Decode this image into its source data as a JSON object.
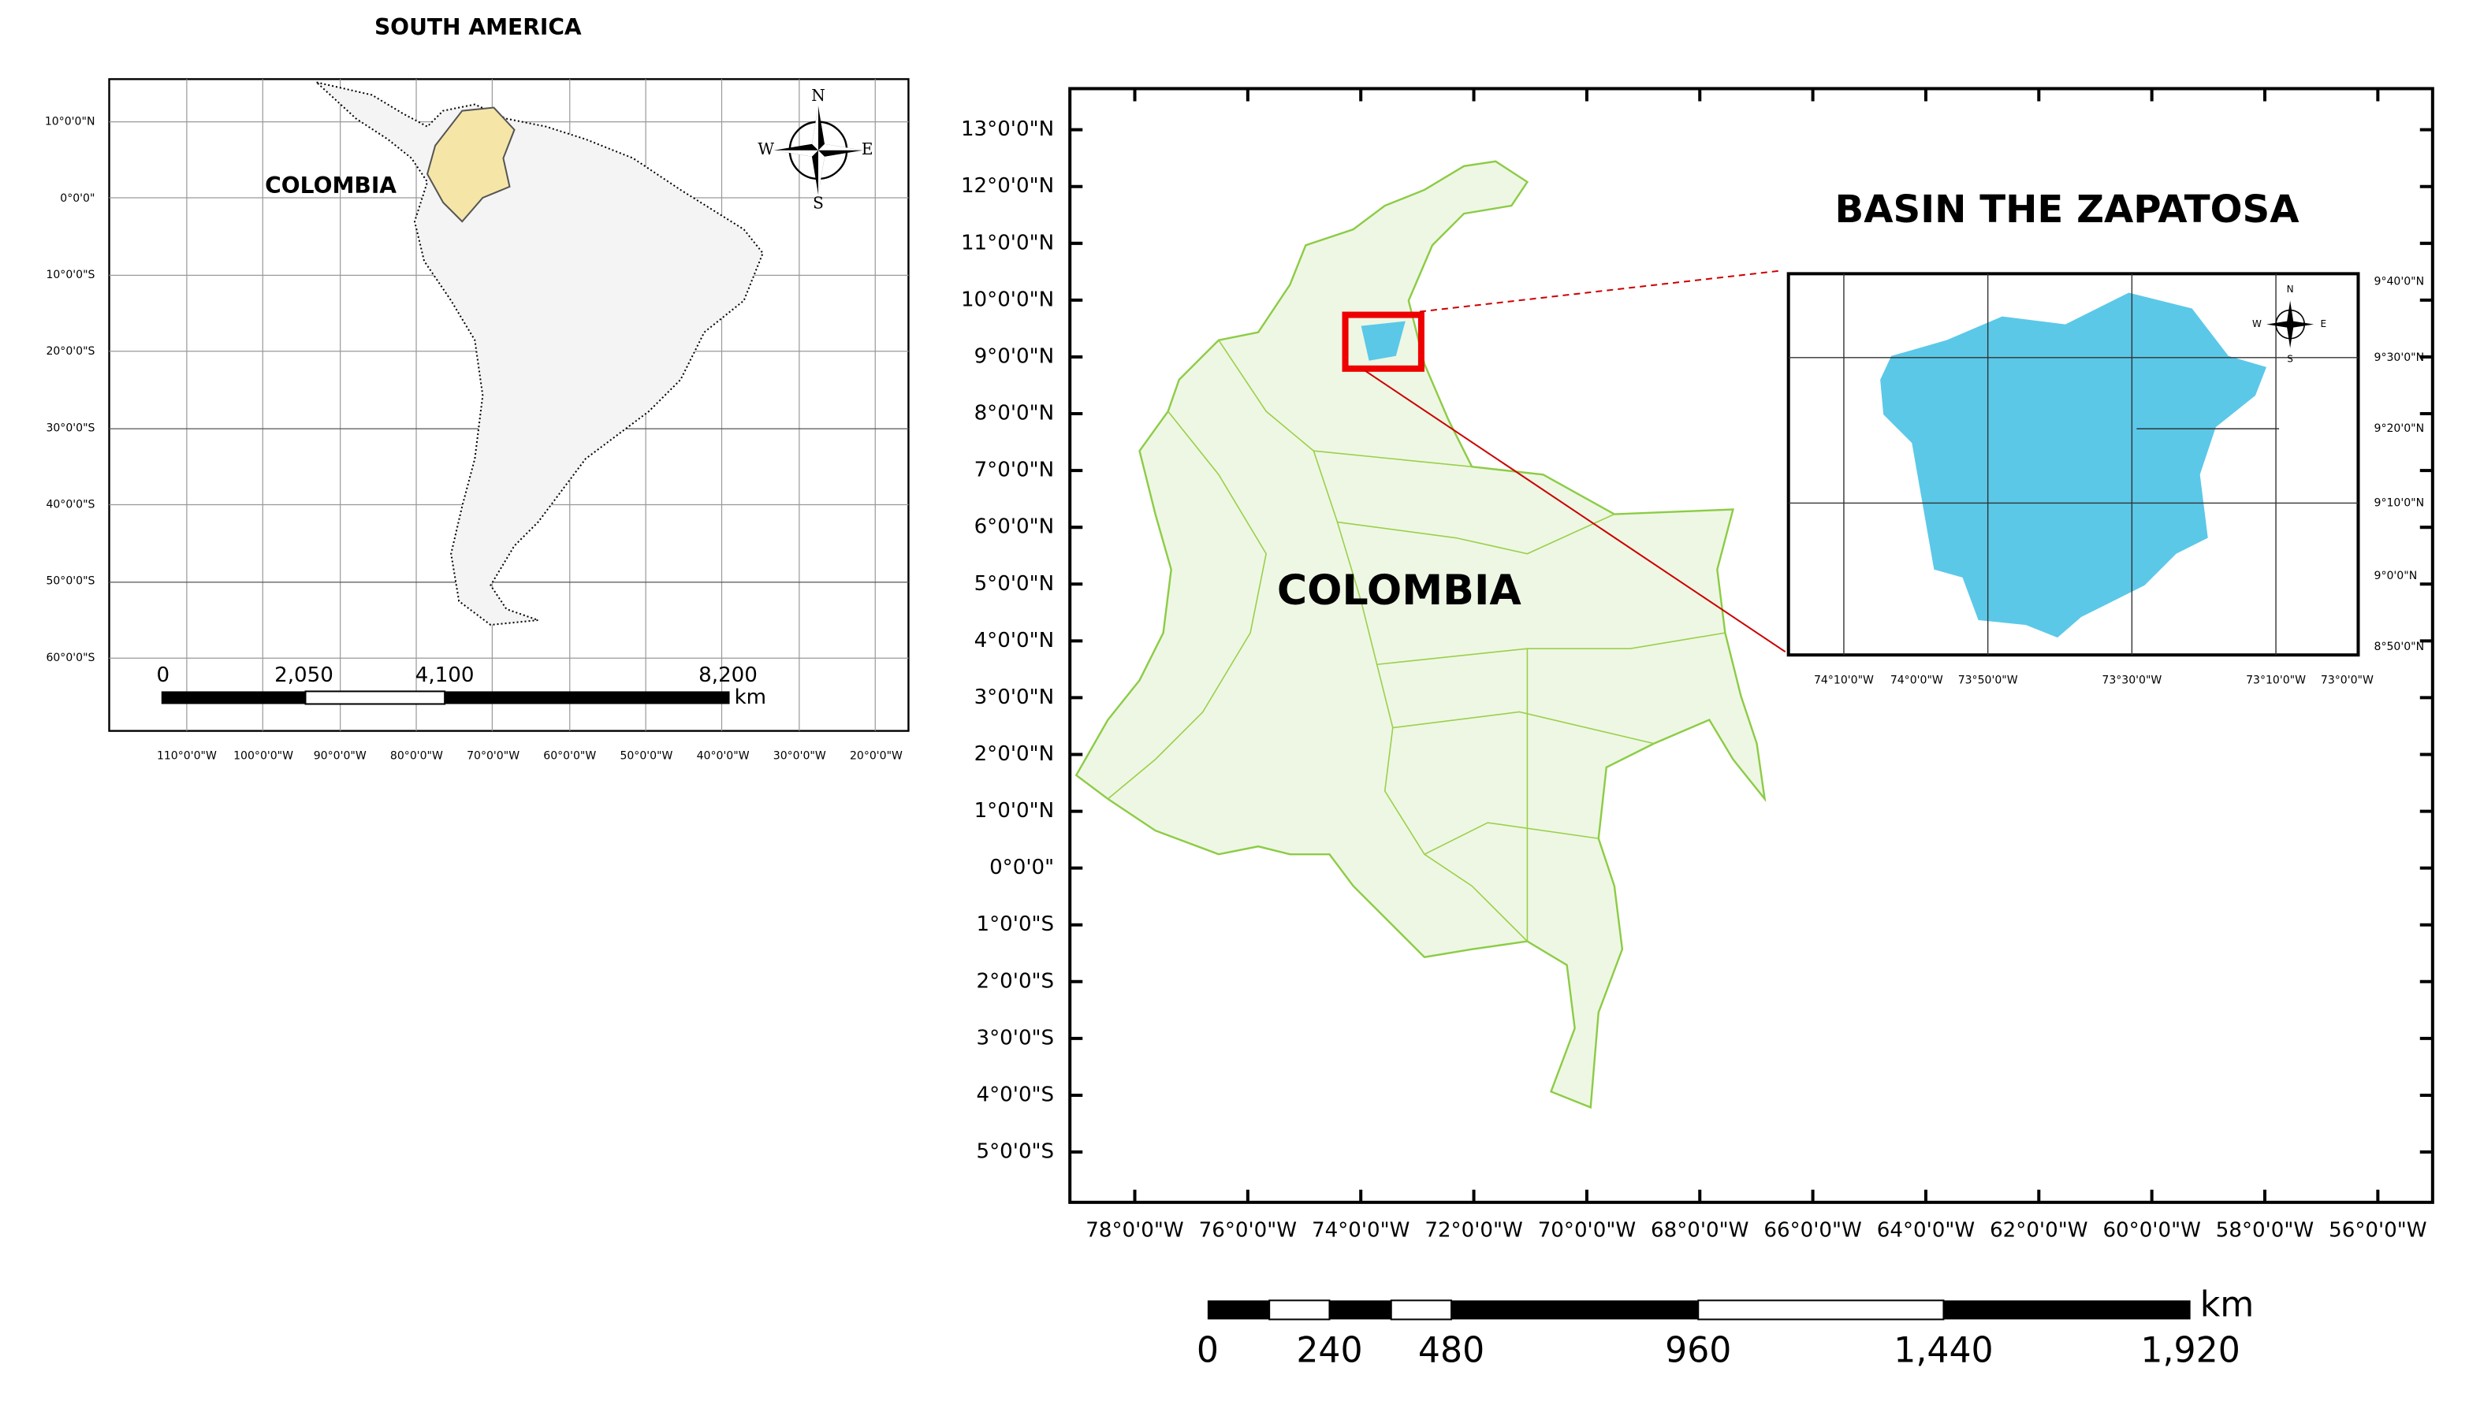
{
  "south_america": {
    "title": "SOUTH AMERICA",
    "country_label": "COLOMBIA",
    "lat_labels": [
      "10°0'0\"N",
      "0°0'0\"",
      "10°0'0\"S",
      "20°0'0\"S",
      "30°0'0\"S",
      "40°0'0\"S",
      "50°0'0\"S",
      "60°0'0\"S"
    ],
    "lon_labels": [
      "110°0'0\"W",
      "100°0'0\"W",
      "90°0'0\"W",
      "80°0'0\"W",
      "70°0'0\"W",
      "60°0'0\"W",
      "50°0'0\"W",
      "40°0'0\"W",
      "30°0'0\"W",
      "20°0'0\"W"
    ],
    "scale_labels": [
      "0",
      "2,050",
      "4,100",
      "8,200"
    ],
    "scale_unit": "km",
    "compass": [
      "N",
      "E",
      "S",
      "W"
    ]
  },
  "colombia": {
    "country_label": "COLOMBIA",
    "lat_labels": [
      "13°0'0\"N",
      "12°0'0\"N",
      "11°0'0\"N",
      "10°0'0\"N",
      "9°0'0\"N",
      "8°0'0\"N",
      "7°0'0\"N",
      "6°0'0\"N",
      "5°0'0\"N",
      "4°0'0\"N",
      "3°0'0\"N",
      "2°0'0\"N",
      "1°0'0\"N",
      "0°0'0\"",
      "1°0'0\"S",
      "2°0'0\"S",
      "3°0'0\"S",
      "4°0'0\"S",
      "5°0'0\"S"
    ],
    "lon_labels": [
      "78°0'0\"W",
      "76°0'0\"W",
      "74°0'0\"W",
      "72°0'0\"W",
      "70°0'0\"W",
      "68°0'0\"W",
      "66°0'0\"W",
      "64°0'0\"W",
      "62°0'0\"W",
      "60°0'0\"W",
      "58°0'0\"W",
      "56°0'0\"W"
    ],
    "scale_labels": [
      "0",
      "240",
      "480",
      "960",
      "1,440",
      "1,920"
    ],
    "scale_unit": "km"
  },
  "inset": {
    "title": "BASIN THE ZAPATOSA",
    "lat_labels": [
      "9°40'0\"N",
      "9°30'0\"N",
      "9°20'0\"N",
      "9°10'0\"N",
      "9°0'0\"N",
      "8°50'0\"N"
    ],
    "lon_labels": [
      "74°10'0\"W",
      "74°0'0\"W",
      "73°50'0\"W",
      "73°30'0\"W",
      "73°10'0\"W",
      "73°0'0\"W"
    ],
    "compass": [
      "N",
      "E",
      "S",
      "W"
    ]
  }
}
